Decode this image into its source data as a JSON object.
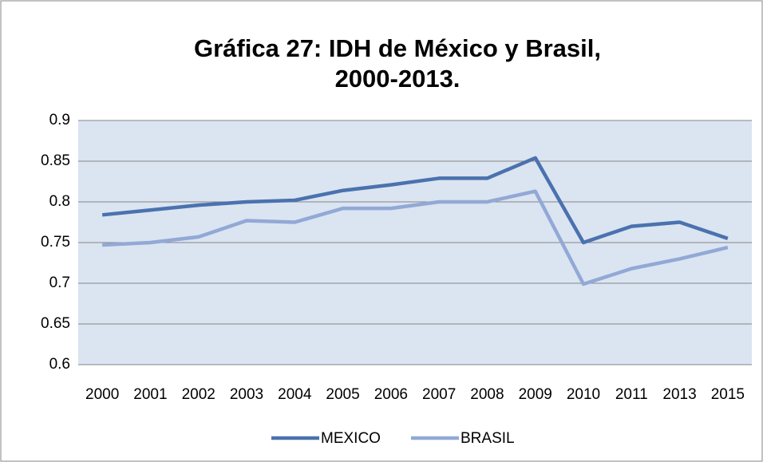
{
  "chart_data": {
    "type": "line",
    "title": [
      "Gráfica 27: IDH de México y Brasil,",
      "2000-2013."
    ],
    "categories": [
      "2000",
      "2001",
      "2002",
      "2003",
      "2004",
      "2005",
      "2006",
      "2007",
      "2008",
      "2009",
      "2010",
      "2011",
      "2013",
      "2015"
    ],
    "series": [
      {
        "name": "MEXICO",
        "color": "#4a72ae",
        "values": [
          0.784,
          0.79,
          0.796,
          0.8,
          0.802,
          0.814,
          0.821,
          0.829,
          0.829,
          0.854,
          0.75,
          0.77,
          0.775,
          0.755
        ]
      },
      {
        "name": "BRASIL",
        "color": "#92a9d6",
        "values": [
          0.747,
          0.75,
          0.757,
          0.777,
          0.775,
          0.792,
          0.792,
          0.8,
          0.8,
          0.813,
          0.699,
          0.718,
          0.73,
          0.744
        ]
      }
    ],
    "ylim": [
      0.6,
      0.9
    ],
    "yticks": [
      0.6,
      0.65,
      0.7,
      0.75,
      0.8,
      0.85,
      0.9
    ],
    "grid": true,
    "plot_background": "#dbe4f1",
    "legend": "bottom"
  }
}
